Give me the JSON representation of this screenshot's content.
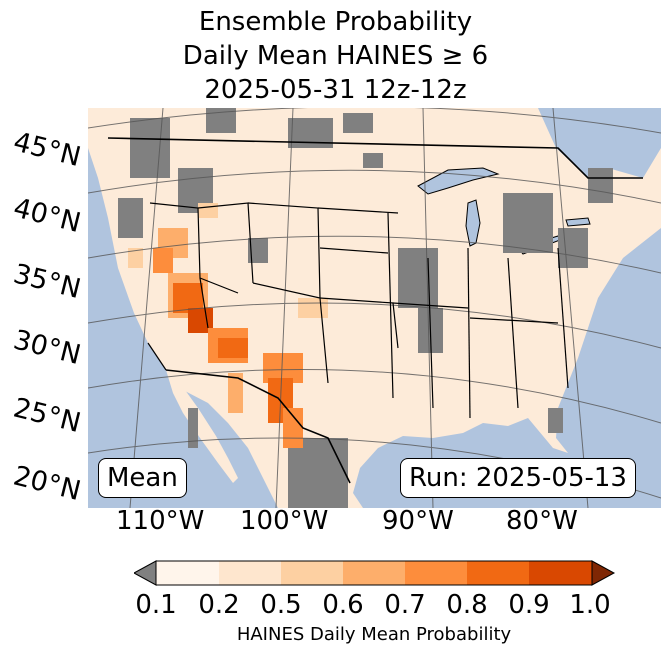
{
  "title": {
    "line1": "Ensemble Probability",
    "line2": "Daily Mean HAINES ≥ 6",
    "line3": "2025-05-31 12z-12z"
  },
  "map": {
    "background_ocean": "#b0c4de",
    "land_base": "#fdebd9",
    "missing_color": "#808080",
    "lat_labels": [
      "45°N",
      "40°N",
      "35°N",
      "30°N",
      "25°N",
      "20°N"
    ],
    "lon_labels": [
      "110°W",
      "100°W",
      "90°W",
      "80°W"
    ],
    "stat_label": "Mean",
    "run_label": "Run: 2025-05-13"
  },
  "colorbar": {
    "label": "HAINES Daily Mean Probability",
    "ticks": [
      "0.1",
      "0.2",
      "0.5",
      "0.6",
      "0.7",
      "0.8",
      "0.9",
      "1.0"
    ],
    "under_color": "#808080",
    "over_color": "#7f2704",
    "colors": [
      "#fff5eb",
      "#fee6ce",
      "#fdd0a2",
      "#fdae6b",
      "#fd8d3c",
      "#f16913",
      "#d94801"
    ]
  }
}
